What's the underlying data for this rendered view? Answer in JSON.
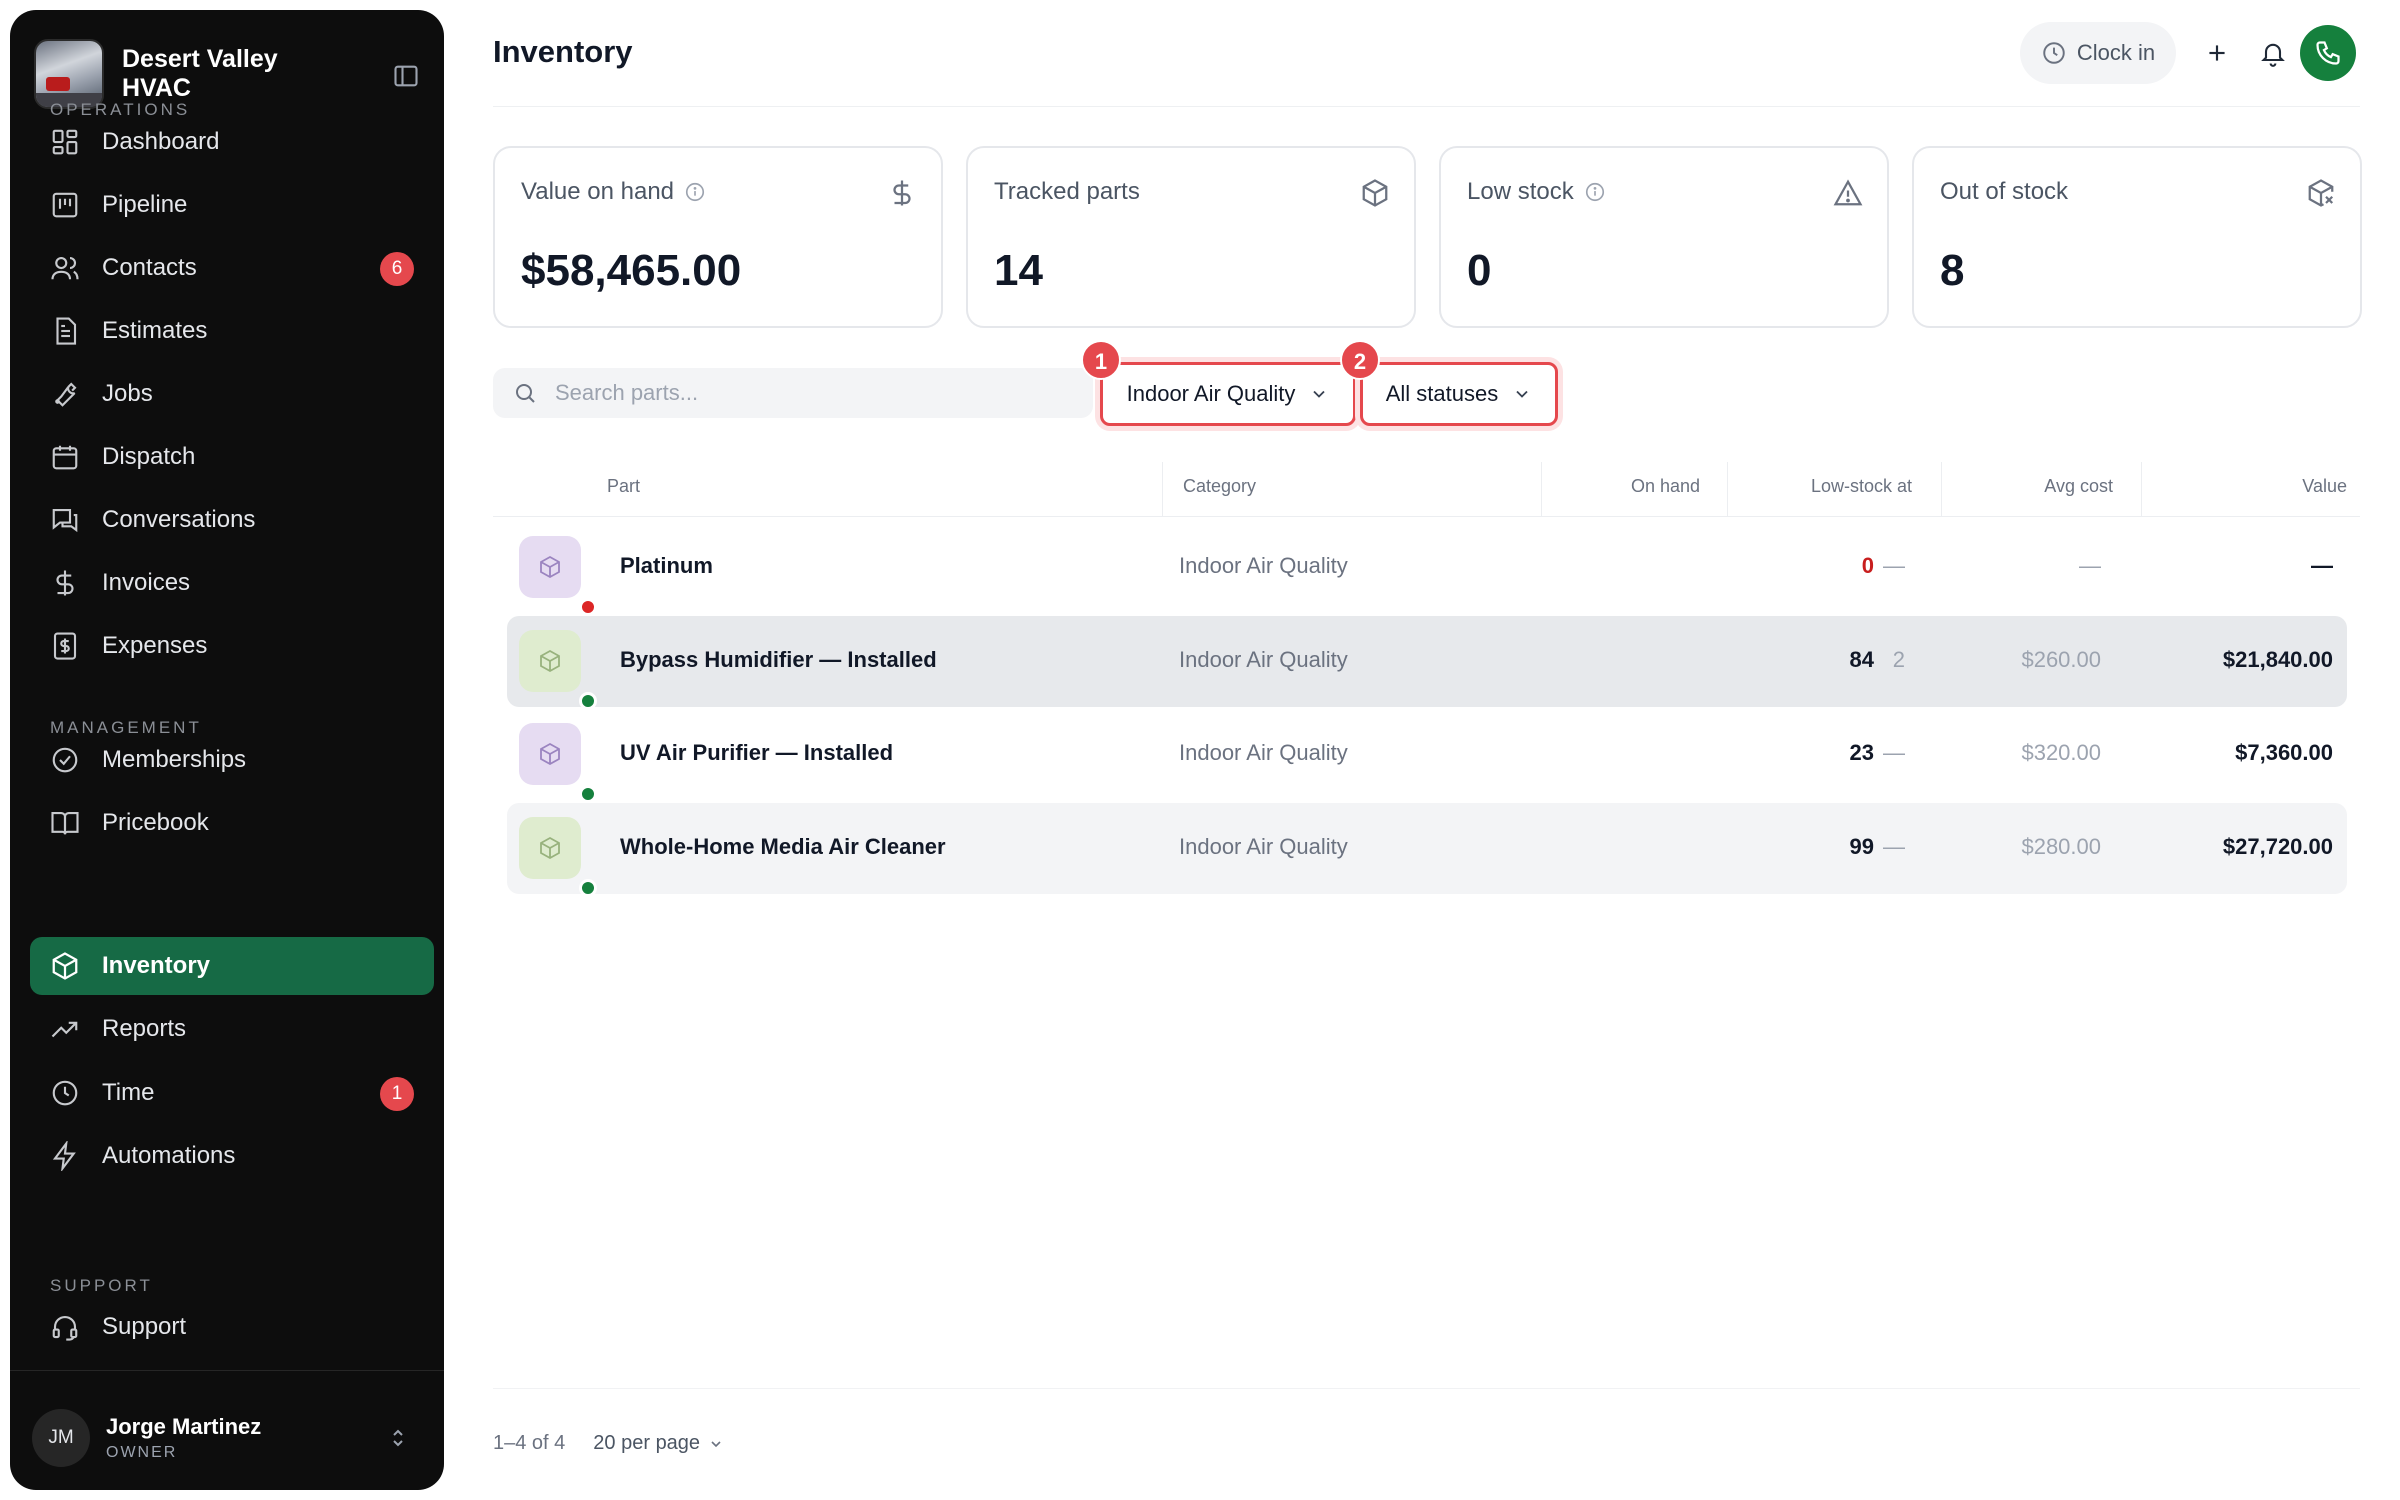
{
  "brand": {
    "name": "Desert Valley HVAC"
  },
  "sidebar": {
    "sections": {
      "operations": "OPERATIONS",
      "management": "MANAGEMENT",
      "support": "SUPPORT"
    },
    "operations": [
      {
        "label": "Dashboard",
        "icon": "dashboard-icon"
      },
      {
        "label": "Pipeline",
        "icon": "pipeline-icon"
      },
      {
        "label": "Contacts",
        "icon": "contacts-icon",
        "badge": "6"
      },
      {
        "label": "Estimates",
        "icon": "estimates-icon"
      },
      {
        "label": "Jobs",
        "icon": "wrench-icon"
      },
      {
        "label": "Dispatch",
        "icon": "calendar-icon"
      },
      {
        "label": "Conversations",
        "icon": "chat-icon"
      },
      {
        "label": "Invoices",
        "icon": "dollar-icon"
      },
      {
        "label": "Expenses",
        "icon": "receipt-icon"
      }
    ],
    "management": [
      {
        "label": "Memberships",
        "icon": "badge-check-icon"
      },
      {
        "label": "Pricebook",
        "icon": "book-icon"
      },
      {
        "label": "Inventory",
        "icon": "box-icon",
        "active": true
      },
      {
        "label": "Reports",
        "icon": "trend-icon"
      },
      {
        "label": "Time",
        "icon": "clock-icon",
        "badge": "1"
      },
      {
        "label": "Automations",
        "icon": "bolt-icon"
      }
    ],
    "support": [
      {
        "label": "Support",
        "icon": "headset-icon"
      }
    ]
  },
  "user": {
    "initials": "JM",
    "name": "Jorge Martinez",
    "role": "OWNER"
  },
  "header": {
    "title": "Inventory",
    "clock_in": "Clock in"
  },
  "stats": [
    {
      "label": "Value on hand",
      "value": "$58,465.00",
      "icon": "dollar-icon",
      "info": true
    },
    {
      "label": "Tracked parts",
      "value": "14",
      "icon": "box-icon",
      "info": false
    },
    {
      "label": "Low stock",
      "value": "0",
      "icon": "warning-icon",
      "info": true
    },
    {
      "label": "Out of stock",
      "value": "8",
      "icon": "box-x-icon",
      "info": false
    }
  ],
  "filters": {
    "search_placeholder": "Search parts...",
    "category": "Indoor Air Quality",
    "status": "All statuses",
    "markers": [
      "1",
      "2"
    ]
  },
  "table": {
    "columns": {
      "part": "Part",
      "category": "Category",
      "on_hand": "On hand",
      "low_stock_at": "Low-stock at",
      "avg_cost": "Avg cost",
      "value": "Value"
    },
    "rows": [
      {
        "part": "Platinum",
        "category": "Indoor Air Quality",
        "on_hand": "0",
        "low_stock_at": "—",
        "avg_cost": "—",
        "value": "—",
        "status": "out",
        "thumb": "purple"
      },
      {
        "part": "Bypass Humidifier — Installed",
        "category": "Indoor Air Quality",
        "on_hand": "84",
        "low_stock_at": "2",
        "avg_cost": "$260.00",
        "value": "$21,840.00",
        "status": "in",
        "thumb": "green"
      },
      {
        "part": "UV Air Purifier — Installed",
        "category": "Indoor Air Quality",
        "on_hand": "23",
        "low_stock_at": "—",
        "avg_cost": "$320.00",
        "value": "$7,360.00",
        "status": "in",
        "thumb": "purple"
      },
      {
        "part": "Whole-Home Media Air Cleaner",
        "category": "Indoor Air Quality",
        "on_hand": "99",
        "low_stock_at": "—",
        "avg_cost": "$280.00",
        "value": "$27,720.00",
        "status": "in",
        "thumb": "green"
      }
    ]
  },
  "pagination": {
    "range": "1–4 of 4",
    "per_page": "20 per page"
  },
  "colors": {
    "sidebar_bg": "#0d0d0d",
    "active_nav": "#166a45",
    "badge": "#e5484d",
    "out_of_stock": "#dc2626",
    "in_stock": "#15803d"
  }
}
